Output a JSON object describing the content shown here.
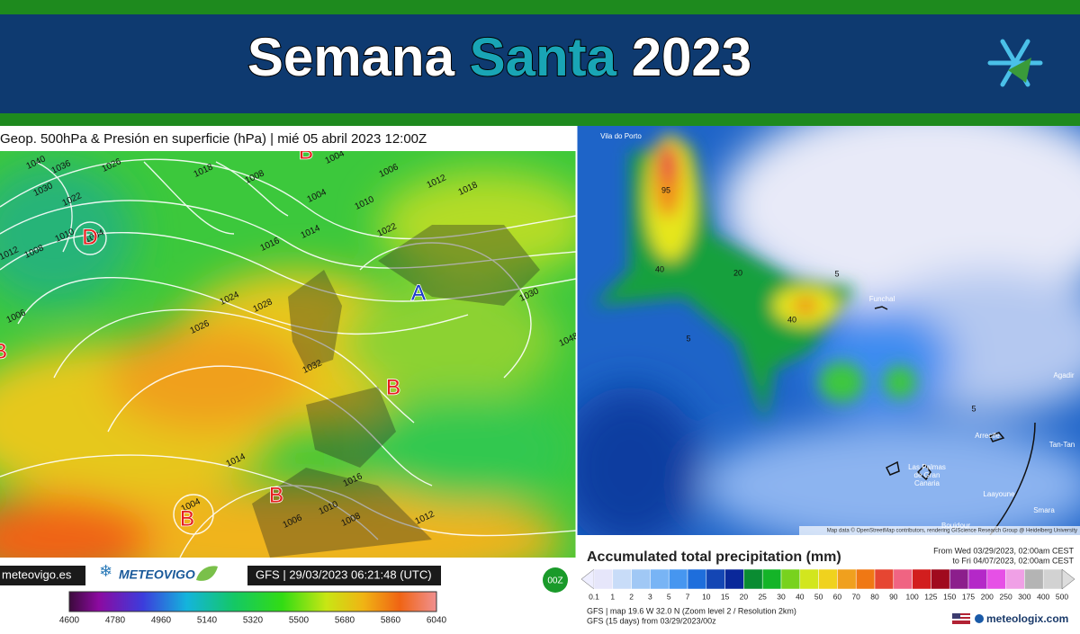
{
  "header": {
    "title_parts": [
      "Semana",
      "Santa",
      "2023"
    ]
  },
  "left_map": {
    "title": "Geop. 500hPa & Presión en superficie (hPa) | mié 05 abril 2023 12:00Z",
    "isobar_labels": [
      "1040",
      "1036",
      "1026",
      "1018",
      "1008",
      "1004",
      "1006",
      "1012",
      "1018",
      "1030",
      "1022",
      "1004",
      "1010",
      "1022",
      "1014",
      "1016",
      "1010",
      "1004",
      "1008",
      "1012",
      "1024",
      "1028",
      "1030",
      "1006",
      "1026",
      "1032",
      "1048",
      "1014",
      "1016",
      "1010",
      "1012",
      "1004",
      "1006",
      "1008"
    ],
    "pressure_centers": [
      "B",
      "D",
      "A",
      "B",
      "B",
      "B",
      "B"
    ],
    "footer": {
      "site": "meteovigo.es",
      "brand": "METEOVIGO",
      "run": "GFS | 29/03/2023 06:21:48 (UTC)",
      "cycle": "00Z"
    },
    "colorbar_ticks": [
      "4600",
      "4780",
      "4960",
      "5140",
      "5320",
      "5500",
      "5680",
      "5860",
      "6040"
    ]
  },
  "right_map": {
    "places": [
      "Vila do Porto",
      "Funchal",
      "Agadir",
      "Arrecife",
      "Las Palmas de Gran Canaria",
      "Laayoune",
      "Smara",
      "Boujdour",
      "Tan-Tan"
    ],
    "contour_labels": [
      "95",
      "40",
      "20",
      "5",
      "40",
      "5",
      "5"
    ],
    "attribution": "Map data © OpenStreetMap contributors, rendering GIScience Research Group @ Heidelberg University",
    "legend": {
      "title": "Accumulated total precipitation (mm)",
      "from": "From Wed 03/29/2023, 02:00am CEST",
      "to": "to Fri 04/07/2023, 02:00am CEST",
      "scale_ticks": [
        "0.1",
        "1",
        "2",
        "3",
        "5",
        "7",
        "10",
        "15",
        "20",
        "25",
        "30",
        "40",
        "50",
        "60",
        "70",
        "80",
        "90",
        "100",
        "125",
        "150",
        "175",
        "200",
        "250",
        "300",
        "400",
        "500"
      ],
      "location": "GFS | map 19.6 W 32.0 N (Zoom level 2 / Resolution 2km)",
      "model": "GFS (15 days) from 03/29/2023/00z",
      "brand": "meteologix.com"
    }
  }
}
